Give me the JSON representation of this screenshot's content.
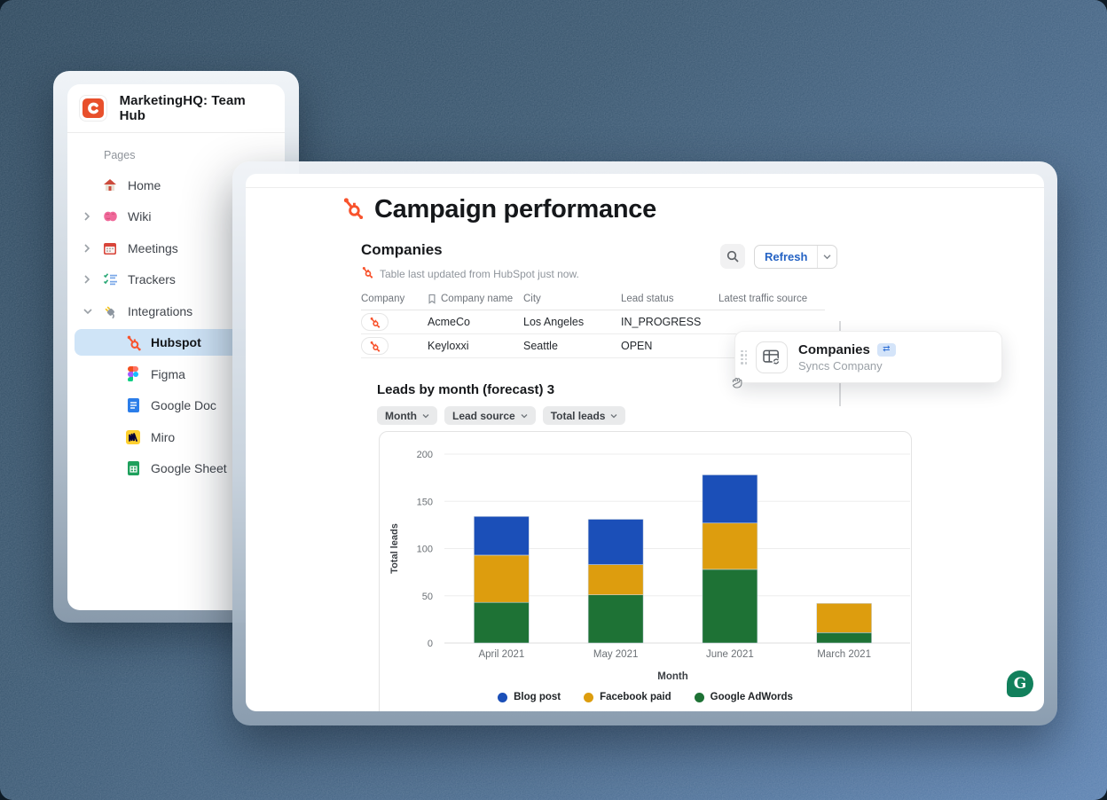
{
  "app": {
    "title": "MarketingHQ: Team Hub"
  },
  "sidebar": {
    "section_label": "Pages",
    "items": [
      {
        "label": "Home",
        "icon": "home-icon",
        "chevron": "none"
      },
      {
        "label": "Wiki",
        "icon": "brain-icon",
        "chevron": "right"
      },
      {
        "label": "Meetings",
        "icon": "calendar-icon",
        "chevron": "right"
      },
      {
        "label": "Trackers",
        "icon": "checklist-icon",
        "chevron": "right"
      },
      {
        "label": "Integrations",
        "icon": "plug-icon",
        "chevron": "down"
      },
      {
        "label": "Hubspot",
        "icon": "hubspot-icon",
        "selected": true
      },
      {
        "label": "Figma",
        "icon": "figma-icon"
      },
      {
        "label": "Google Doc",
        "icon": "google-doc-icon"
      },
      {
        "label": "Miro",
        "icon": "miro-icon"
      },
      {
        "label": "Google Sheet",
        "icon": "google-sheet-icon"
      }
    ]
  },
  "page": {
    "title": "Campaign performance",
    "companies": {
      "heading": "Companies",
      "sync_note": "Table last updated from HubSpot just now.",
      "refresh_label": "Refresh",
      "table": {
        "columns": [
          "Company",
          "Company name",
          "City",
          "Lead status",
          "Latest traffic source"
        ],
        "rows": [
          {
            "company_name": "AcmeCo",
            "city": "Los Angeles",
            "lead_status": "IN_PROGRESS",
            "latest_traffic_source": ""
          },
          {
            "company_name": "Keyloxxi",
            "city": "Seattle",
            "lead_status": "OPEN",
            "latest_traffic_source": ""
          }
        ]
      }
    },
    "chart_section": {
      "heading": "Leads by month (forecast)",
      "count": "3",
      "filters": [
        "Month",
        "Lead source",
        "Total leads"
      ]
    }
  },
  "sync_card": {
    "title": "Companies",
    "subtitle": "Syncs Company",
    "badge_glyph": "⇄"
  },
  "grammarly": {
    "glyph": "G"
  },
  "chart_data": {
    "type": "bar",
    "stacked": true,
    "title": "Leads by month (forecast)",
    "xlabel": "Month",
    "ylabel": "Total leads",
    "categories": [
      "April 2021",
      "May 2021",
      "June 2021",
      "March 2021"
    ],
    "series": [
      {
        "name": "Blog post",
        "color": "#1b4fb8",
        "values": [
          41,
          48,
          51,
          0
        ]
      },
      {
        "name": "Facebook paid",
        "color": "#dd9d0e",
        "values": [
          50,
          32,
          49,
          31
        ]
      },
      {
        "name": "Google AdWords",
        "color": "#1e7235",
        "values": [
          43,
          51,
          78,
          11
        ]
      }
    ],
    "stack_order": "last-series-at-bottom",
    "ylim": [
      0,
      200
    ],
    "yticks": [
      0,
      50,
      100,
      150,
      200
    ],
    "grid": true,
    "legend_position": "bottom"
  },
  "colors": {
    "hubspot_orange": "#f8532d",
    "accent_blue": "#2563c4",
    "selected_row_bg": "#cfe4f7",
    "grammarly_green": "#12805c"
  }
}
